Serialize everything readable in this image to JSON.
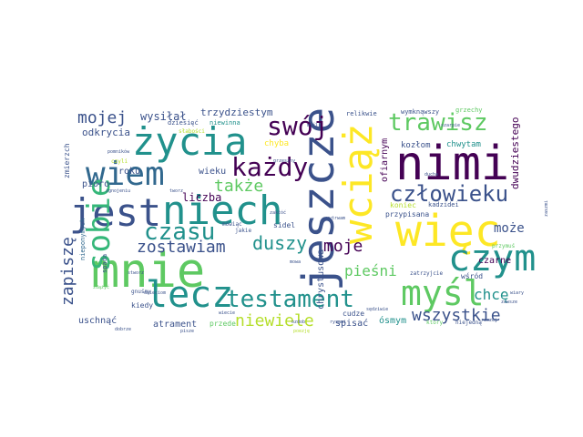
{
  "word_cloud": {
    "words": [
      "mnie",
      "jest",
      "niech",
      "nimi",
      "jeszcze",
      "więc",
      "życia",
      "wiem",
      "wciąż",
      "czym",
      "myśl",
      "lecz",
      "sobie",
      "testament",
      "każdy",
      "trawisz",
      "człowieku",
      "swój",
      "czasu",
      "zostawiam",
      "duszy",
      "także",
      "mojej",
      "wysiłał",
      "trzydziestym",
      "odkrycia",
      "moje",
      "pieśni",
      "chcę",
      "wszystkie",
      "niewiele",
      "zapiszę",
      "może",
      "liczba",
      "roku",
      "pióro",
      "wieku",
      "dziesięć",
      "niewinna",
      "relikwie",
      "wymknąwszy",
      "grzechy",
      "chyba",
      "kozłom",
      "chwytam",
      "dwudziestego",
      "ofiarnym",
      "koniec",
      "przypisana",
      "kadzidei",
      "czarne",
      "spisać",
      "ósmym",
      "wśród",
      "atrament",
      "przede",
      "uschnąć",
      "kiedy",
      "chrystusowa",
      "sidel",
      "zmierzch",
      "nieponymych",
      "spada",
      "cudze",
      "gnuśny",
      "zatrzyjcie",
      "pomników",
      "słabości",
      "ktory",
      "niejedną",
      "przymuś",
      "czyli",
      "zgnojeniu",
      "tworz",
      "zaszmi",
      "jakie",
      "mówiąc",
      "zdążyć",
      "stworz",
      "ducha",
      "grzeszny",
      "rysami",
      "sędziwie",
      "zakłóć",
      "szarpie",
      "wiary",
      "myśl",
      "mowa",
      "wytrwam",
      "raczej",
      "dobrze",
      "pisze",
      "ozdob",
      "poezję",
      "dzieciom",
      "wiecie",
      "zawsze"
    ],
    "palette": [
      "#440154",
      "#3b528b",
      "#21918c",
      "#5ec962",
      "#b5de2b",
      "#fde725"
    ]
  }
}
